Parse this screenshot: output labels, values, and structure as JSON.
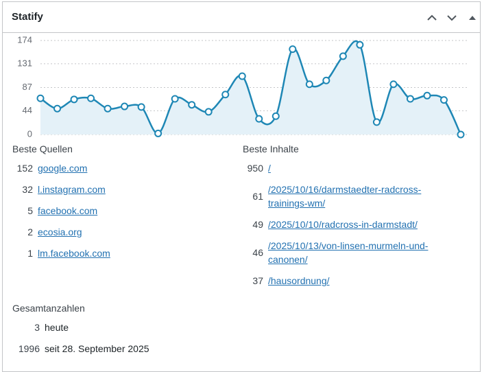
{
  "widget": {
    "title": "Statify"
  },
  "chart_data": {
    "type": "line",
    "categories": [
      null,
      null,
      null,
      null,
      null,
      null,
      null,
      null,
      null,
      null,
      null,
      null,
      null,
      null,
      null,
      null,
      null,
      null,
      null,
      null,
      null,
      null,
      null,
      null,
      null,
      null
    ],
    "series": [
      {
        "color": "#1e87b5",
        "values": [
          67,
          48,
          65,
          67,
          48,
          52,
          51,
          2,
          66,
          55,
          42,
          74,
          108,
          29,
          34,
          158,
          93,
          100,
          145,
          166,
          23,
          93,
          66,
          72,
          64,
          0
        ]
      }
    ],
    "ylim": [
      0,
      174
    ],
    "yticks": [
      0,
      44,
      87,
      131,
      174
    ],
    "grid": true
  },
  "sources": {
    "title": "Beste Quellen",
    "items": [
      {
        "count": 152,
        "label": "google.com"
      },
      {
        "count": 32,
        "label": "l.instagram.com"
      },
      {
        "count": 5,
        "label": "facebook.com"
      },
      {
        "count": 2,
        "label": "ecosia.org"
      },
      {
        "count": 1,
        "label": "lm.facebook.com"
      }
    ]
  },
  "contents": {
    "title": "Beste Inhalte",
    "items": [
      {
        "count": 950,
        "label": "/"
      },
      {
        "count": 61,
        "label": "/2025/10/16/darmstaedter-radcross-trainings-wm/"
      },
      {
        "count": 49,
        "label": "/2025/10/10/radcross-in-darmstadt/"
      },
      {
        "count": 46,
        "label": "/2025/10/13/von-linsen-murmeln-und-canonen/"
      },
      {
        "count": 37,
        "label": "/hausordnung/"
      }
    ]
  },
  "totals": {
    "title": "Gesamtanzahlen",
    "items": [
      {
        "count": 3,
        "label": "heute"
      },
      {
        "count": 1996,
        "label": "seit 28. September 2025"
      }
    ]
  }
}
